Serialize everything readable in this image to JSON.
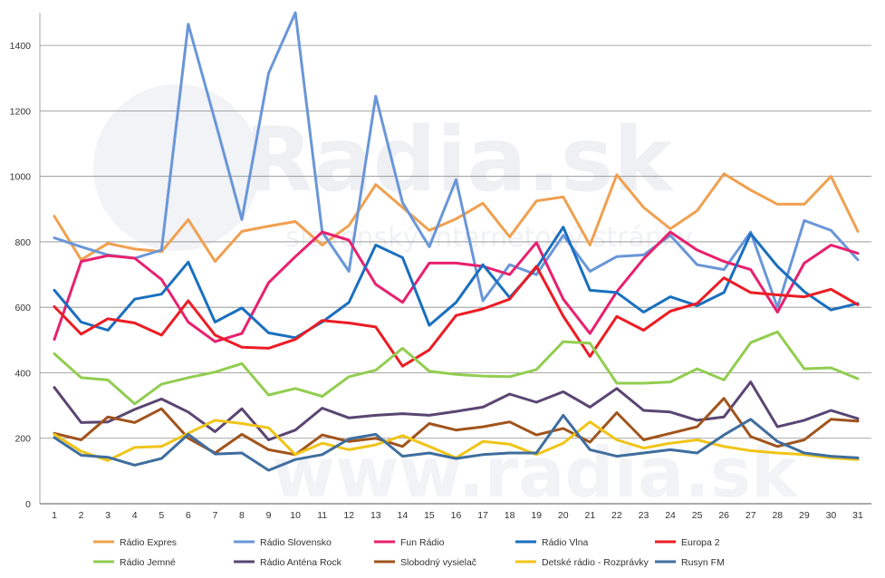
{
  "watermark": {
    "brand": "Radia.sk",
    "tagline": "slovenský internetový stránky",
    "footer": "www.radia.sk"
  },
  "chart_data": {
    "type": "line",
    "title": "",
    "xlabel": "",
    "ylabel": "",
    "ylim": [
      0,
      1500
    ],
    "yticks": [
      0,
      200,
      400,
      600,
      800,
      1000,
      1200,
      1400
    ],
    "x": [
      1,
      2,
      3,
      4,
      5,
      6,
      7,
      8,
      9,
      10,
      11,
      12,
      13,
      14,
      15,
      16,
      17,
      18,
      19,
      20,
      21,
      22,
      23,
      24,
      25,
      26,
      27,
      28,
      29,
      30,
      31
    ],
    "grid": "horizontal",
    "legend_position": "bottom",
    "series": [
      {
        "name": "Rádio Expres",
        "color": "#f0a050",
        "values": [
          878,
          745,
          795,
          778,
          770,
          868,
          740,
          832,
          848,
          862,
          790,
          850,
          975,
          905,
          835,
          870,
          918,
          815,
          925,
          937,
          790,
          1005,
          905,
          840,
          895,
          1008,
          958,
          915,
          915,
          1000,
          832
        ]
      },
      {
        "name": "Rádio Slovensko",
        "color": "#6a96d8",
        "values": [
          812,
          785,
          760,
          750,
          775,
          1465,
          1170,
          868,
          1315,
          1500,
          830,
          710,
          1245,
          920,
          785,
          990,
          620,
          730,
          700,
          820,
          710,
          755,
          760,
          820,
          730,
          715,
          830,
          600,
          865,
          835,
          745
        ]
      },
      {
        "name": "Fun Rádio",
        "color": "#e8206e",
        "values": [
          502,
          740,
          758,
          750,
          685,
          555,
          495,
          520,
          675,
          755,
          830,
          805,
          670,
          615,
          735,
          735,
          725,
          700,
          798,
          625,
          520,
          648,
          748,
          830,
          775,
          740,
          715,
          585,
          735,
          790,
          765
        ]
      },
      {
        "name": "Rádio Vlna",
        "color": "#1a6fbf",
        "values": [
          652,
          555,
          530,
          625,
          640,
          738,
          555,
          598,
          522,
          507,
          555,
          615,
          790,
          752,
          545,
          615,
          730,
          630,
          720,
          845,
          652,
          645,
          585,
          632,
          605,
          645,
          825,
          725,
          648,
          592,
          612
        ]
      },
      {
        "name": "Europa 2",
        "color": "#ec1c24",
        "values": [
          602,
          518,
          565,
          552,
          515,
          620,
          515,
          478,
          475,
          502,
          560,
          552,
          540,
          420,
          470,
          575,
          595,
          625,
          725,
          573,
          450,
          572,
          530,
          588,
          612,
          690,
          645,
          638,
          632,
          655,
          608
        ]
      },
      {
        "name": "Rádio Jemné",
        "color": "#92cd50",
        "values": [
          458,
          385,
          378,
          305,
          365,
          385,
          402,
          428,
          332,
          352,
          328,
          388,
          408,
          475,
          405,
          395,
          390,
          388,
          410,
          495,
          490,
          368,
          368,
          372,
          412,
          378,
          492,
          525,
          412,
          415,
          382
        ]
      },
      {
        "name": "Rádio Anténa Rock",
        "color": "#5a4572",
        "values": [
          355,
          248,
          250,
          288,
          320,
          280,
          220,
          290,
          195,
          225,
          292,
          262,
          270,
          275,
          270,
          282,
          295,
          335,
          310,
          342,
          295,
          352,
          285,
          280,
          255,
          265,
          372,
          235,
          255,
          285,
          260
        ]
      },
      {
        "name": "Slobodný vysielač",
        "color": "#a0541c",
        "values": [
          215,
          195,
          265,
          248,
          290,
          200,
          155,
          212,
          165,
          150,
          210,
          190,
          200,
          175,
          245,
          225,
          235,
          250,
          210,
          230,
          188,
          278,
          195,
          215,
          235,
          322,
          205,
          175,
          195,
          258,
          252
        ]
      },
      {
        "name": "Detské rádio - Rozprávky",
        "color": "#f0c418",
        "values": [
          212,
          160,
          132,
          172,
          175,
          215,
          255,
          245,
          232,
          150,
          185,
          165,
          180,
          208,
          175,
          140,
          190,
          182,
          150,
          185,
          250,
          195,
          170,
          185,
          195,
          175,
          162,
          155,
          150,
          140,
          135
        ]
      },
      {
        "name": "Rusyn FM",
        "color": "#3f6e9e",
        "values": [
          202,
          148,
          142,
          118,
          138,
          212,
          152,
          155,
          102,
          135,
          150,
          198,
          212,
          145,
          155,
          138,
          150,
          155,
          155,
          270,
          165,
          145,
          155,
          165,
          155,
          210,
          258,
          190,
          155,
          145,
          140
        ]
      }
    ]
  }
}
